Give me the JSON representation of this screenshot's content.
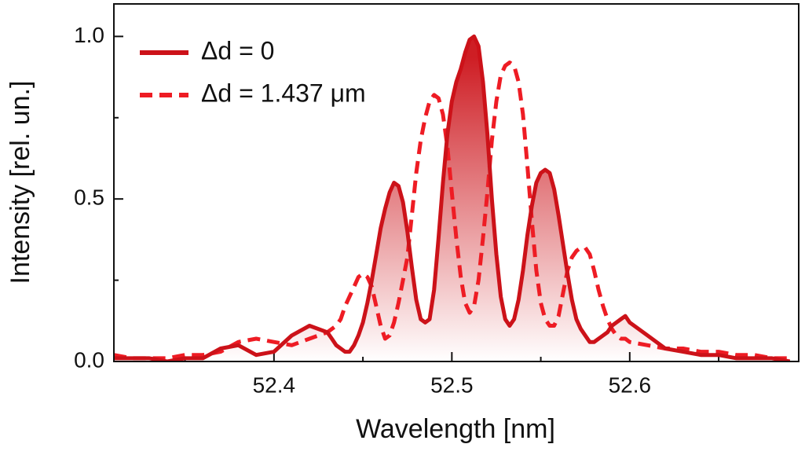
{
  "chart_data": {
    "type": "line",
    "x_label": "Wavelength [nm]",
    "y_label": "Intensity [rel. un.]",
    "xlim": [
      52.31,
      52.695
    ],
    "ylim": [
      0,
      1.1
    ],
    "xticks": [
      52.4,
      52.5,
      52.6
    ],
    "x_minor_ticks": [
      52.35,
      52.45,
      52.55,
      52.65
    ],
    "yticks": [
      {
        "value": 0,
        "label": "0.0"
      },
      {
        "value": 0.5,
        "label": "0.5"
      },
      {
        "value": 1,
        "label": "1.0"
      }
    ],
    "y_minor_ticks": [
      0.25,
      0.75
    ],
    "legend": "upper left",
    "x": [
      52.31,
      52.32,
      52.33,
      52.34,
      52.35,
      52.36,
      52.37,
      52.38,
      52.39,
      52.4,
      52.41,
      52.42,
      52.43,
      52.4325,
      52.435,
      52.4375,
      52.44,
      52.4425,
      52.445,
      52.4475,
      52.45,
      52.4525,
      52.455,
      52.4575,
      52.46,
      52.4625,
      52.465,
      52.4675,
      52.47,
      52.4725,
      52.475,
      52.4775,
      52.48,
      52.4825,
      52.485,
      52.4875,
      52.49,
      52.4925,
      52.495,
      52.4975,
      52.5,
      52.5025,
      52.505,
      52.5075,
      52.51,
      52.5125,
      52.515,
      52.5175,
      52.52,
      52.5225,
      52.525,
      52.5275,
      52.53,
      52.5325,
      52.535,
      52.5375,
      52.54,
      52.5425,
      52.545,
      52.5475,
      52.55,
      52.5525,
      52.555,
      52.5575,
      52.56,
      52.5625,
      52.565,
      52.5675,
      52.57,
      52.5725,
      52.575,
      52.5775,
      52.58,
      52.5825,
      52.585,
      52.5875,
      52.59,
      52.5925,
      52.595,
      52.5975,
      52.6,
      52.61,
      52.62,
      52.63,
      52.64,
      52.65,
      52.66,
      52.67,
      52.68,
      52.69
    ],
    "series": [
      {
        "name": "Δd = 0",
        "color": "#cc1219",
        "style": "solid",
        "fill_under": true,
        "values": [
          0.01,
          0.01,
          0.01,
          0.0,
          0.01,
          0.01,
          0.04,
          0.05,
          0.02,
          0.03,
          0.08,
          0.11,
          0.09,
          0.07,
          0.05,
          0.04,
          0.03,
          0.03,
          0.05,
          0.08,
          0.12,
          0.18,
          0.25,
          0.33,
          0.41,
          0.47,
          0.52,
          0.55,
          0.54,
          0.49,
          0.4,
          0.29,
          0.19,
          0.13,
          0.12,
          0.13,
          0.22,
          0.38,
          0.55,
          0.7,
          0.8,
          0.86,
          0.9,
          0.95,
          0.99,
          1.0,
          0.97,
          0.86,
          0.7,
          0.5,
          0.33,
          0.2,
          0.13,
          0.11,
          0.13,
          0.19,
          0.28,
          0.39,
          0.48,
          0.55,
          0.58,
          0.59,
          0.58,
          0.53,
          0.45,
          0.36,
          0.27,
          0.19,
          0.13,
          0.1,
          0.08,
          0.06,
          0.06,
          0.07,
          0.08,
          0.09,
          0.11,
          0.12,
          0.13,
          0.14,
          0.12,
          0.08,
          0.04,
          0.03,
          0.02,
          0.02,
          0.01,
          0.01,
          0.01,
          0.0
        ]
      },
      {
        "name": "Δd = 1.437 μm",
        "color": "#ee1c24",
        "style": "dashed",
        "values": [
          0.02,
          0.01,
          0.01,
          0.01,
          0.02,
          0.02,
          0.03,
          0.06,
          0.07,
          0.06,
          0.05,
          0.07,
          0.09,
          0.1,
          0.11,
          0.13,
          0.17,
          0.2,
          0.23,
          0.26,
          0.27,
          0.26,
          0.23,
          0.17,
          0.11,
          0.07,
          0.08,
          0.12,
          0.18,
          0.25,
          0.32,
          0.45,
          0.58,
          0.68,
          0.75,
          0.8,
          0.82,
          0.81,
          0.76,
          0.66,
          0.52,
          0.38,
          0.26,
          0.18,
          0.15,
          0.17,
          0.25,
          0.38,
          0.52,
          0.68,
          0.8,
          0.88,
          0.91,
          0.92,
          0.91,
          0.86,
          0.76,
          0.6,
          0.43,
          0.28,
          0.18,
          0.13,
          0.11,
          0.11,
          0.14,
          0.21,
          0.28,
          0.32,
          0.34,
          0.35,
          0.35,
          0.33,
          0.28,
          0.22,
          0.17,
          0.13,
          0.1,
          0.08,
          0.07,
          0.07,
          0.06,
          0.05,
          0.04,
          0.04,
          0.03,
          0.03,
          0.02,
          0.02,
          0.01,
          0.01
        ]
      }
    ]
  }
}
